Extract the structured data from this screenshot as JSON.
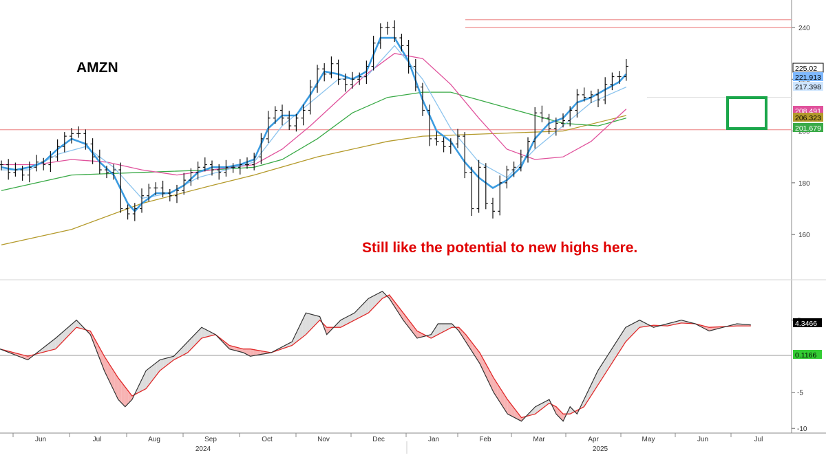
{
  "ticker": "AMZN",
  "annotation": "Still like the potential to new highs here.",
  "colors": {
    "price_bars": "#111111",
    "ema_fast": "#3b9be0",
    "ema_slow": "#8cc4ee",
    "ma_pink": "#e0529c",
    "ma_green": "#3aaa47",
    "ma_olive": "#b49a2b",
    "resistance": "#f0a0a0",
    "macd_line": "#333333",
    "signal_line": "#e02a2a",
    "fill_up": "#dddddd",
    "fill_down": "#f7b3b3",
    "box": "#1aa64a",
    "annotation_text": "#e00000",
    "zero_label_bg": "#33cc33"
  },
  "chart_data": [
    {
      "type": "line",
      "title": "AMZN",
      "ylim": [
        147,
        252
      ],
      "y_ticks": [
        160,
        180,
        200,
        220,
        240
      ],
      "x_ticks": [
        "Jun",
        "Jul",
        "Aug",
        "Sep",
        "Oct",
        "Nov",
        "Dec",
        "Jan",
        "Feb",
        "Mar",
        "Apr",
        "May",
        "Jun",
        "Jul"
      ],
      "year_labels": [
        "2024",
        "2025"
      ],
      "price": [
        [
          0,
          187
        ],
        [
          2,
          184
        ],
        [
          4,
          185
        ],
        [
          6,
          183
        ],
        [
          8,
          186
        ],
        [
          10,
          188
        ],
        [
          12,
          187
        ],
        [
          14,
          190
        ],
        [
          16,
          194
        ],
        [
          18,
          198
        ],
        [
          20,
          199
        ],
        [
          22,
          199
        ],
        [
          24,
          195
        ],
        [
          26,
          190
        ],
        [
          28,
          185
        ],
        [
          30,
          184
        ],
        [
          32,
          185
        ],
        [
          34,
          170
        ],
        [
          36,
          168
        ],
        [
          38,
          170
        ],
        [
          40,
          175
        ],
        [
          42,
          178
        ],
        [
          44,
          178
        ],
        [
          46,
          176
        ],
        [
          48,
          175
        ],
        [
          50,
          177
        ],
        [
          52,
          181
        ],
        [
          54,
          184
        ],
        [
          56,
          186
        ],
        [
          58,
          187
        ],
        [
          60,
          185
        ],
        [
          62,
          184
        ],
        [
          64,
          186
        ],
        [
          66,
          186
        ],
        [
          68,
          187
        ],
        [
          70,
          187
        ],
        [
          72,
          190
        ],
        [
          74,
          197
        ],
        [
          76,
          205
        ],
        [
          78,
          208
        ],
        [
          80,
          205
        ],
        [
          82,
          202
        ],
        [
          84,
          205
        ],
        [
          86,
          208
        ],
        [
          88,
          217
        ],
        [
          90,
          224
        ],
        [
          92,
          222
        ],
        [
          94,
          226
        ],
        [
          96,
          220
        ],
        [
          98,
          218
        ],
        [
          100,
          220
        ],
        [
          102,
          221
        ],
        [
          104,
          225
        ],
        [
          106,
          234
        ],
        [
          108,
          240
        ],
        [
          110,
          240
        ],
        [
          112,
          236
        ],
        [
          114,
          233
        ],
        [
          116,
          225
        ],
        [
          118,
          217
        ],
        [
          120,
          208
        ],
        [
          122,
          197
        ],
        [
          124,
          196
        ],
        [
          126,
          194
        ],
        [
          128,
          195
        ],
        [
          130,
          198
        ],
        [
          132,
          184
        ],
        [
          134,
          170
        ],
        [
          136,
          186
        ],
        [
          138,
          172
        ],
        [
          140,
          169
        ],
        [
          142,
          180
        ],
        [
          144,
          185
        ],
        [
          146,
          186
        ],
        [
          148,
          190
        ],
        [
          150,
          196
        ],
        [
          152,
          207
        ],
        [
          154,
          205
        ],
        [
          156,
          201
        ],
        [
          158,
          203
        ],
        [
          160,
          204
        ],
        [
          162,
          208
        ],
        [
          164,
          214
        ],
        [
          166,
          213
        ],
        [
          168,
          214
        ],
        [
          170,
          212
        ],
        [
          172,
          218
        ],
        [
          174,
          221
        ],
        [
          176,
          221
        ],
        [
          178,
          225
        ]
      ],
      "ema_fast": [
        [
          0,
          186
        ],
        [
          4,
          185
        ],
        [
          8,
          186
        ],
        [
          12,
          188
        ],
        [
          16,
          193
        ],
        [
          20,
          197
        ],
        [
          24,
          195
        ],
        [
          28,
          188
        ],
        [
          32,
          183
        ],
        [
          36,
          172
        ],
        [
          38,
          169
        ],
        [
          40,
          172
        ],
        [
          44,
          176
        ],
        [
          48,
          176
        ],
        [
          52,
          179
        ],
        [
          56,
          184
        ],
        [
          60,
          186
        ],
        [
          64,
          186
        ],
        [
          68,
          187
        ],
        [
          72,
          189
        ],
        [
          76,
          201
        ],
        [
          80,
          206
        ],
        [
          84,
          206
        ],
        [
          88,
          214
        ],
        [
          92,
          223
        ],
        [
          96,
          222
        ],
        [
          100,
          220
        ],
        [
          104,
          223
        ],
        [
          108,
          236
        ],
        [
          112,
          236
        ],
        [
          116,
          227
        ],
        [
          120,
          212
        ],
        [
          124,
          200
        ],
        [
          128,
          196
        ],
        [
          132,
          188
        ],
        [
          136,
          182
        ],
        [
          140,
          178
        ],
        [
          144,
          181
        ],
        [
          148,
          186
        ],
        [
          152,
          197
        ],
        [
          156,
          203
        ],
        [
          160,
          205
        ],
        [
          164,
          211
        ],
        [
          168,
          213
        ],
        [
          172,
          216
        ],
        [
          176,
          219
        ],
        [
          178,
          222
        ]
      ],
      "ema_slow": [
        [
          0,
          185
        ],
        [
          8,
          185
        ],
        [
          16,
          191
        ],
        [
          24,
          194
        ],
        [
          32,
          186
        ],
        [
          40,
          174
        ],
        [
          48,
          176
        ],
        [
          56,
          182
        ],
        [
          64,
          185
        ],
        [
          72,
          188
        ],
        [
          80,
          202
        ],
        [
          88,
          211
        ],
        [
          96,
          220
        ],
        [
          104,
          221
        ],
        [
          112,
          233
        ],
        [
          120,
          220
        ],
        [
          128,
          201
        ],
        [
          136,
          188
        ],
        [
          144,
          182
        ],
        [
          152,
          193
        ],
        [
          160,
          202
        ],
        [
          168,
          211
        ],
        [
          178,
          217
        ]
      ],
      "ma_pink": [
        [
          0,
          187
        ],
        [
          10,
          187
        ],
        [
          20,
          189
        ],
        [
          30,
          188
        ],
        [
          40,
          185
        ],
        [
          50,
          183
        ],
        [
          60,
          185
        ],
        [
          72,
          187
        ],
        [
          80,
          193
        ],
        [
          88,
          202
        ],
        [
          96,
          212
        ],
        [
          104,
          222
        ],
        [
          112,
          230
        ],
        [
          120,
          228
        ],
        [
          128,
          218
        ],
        [
          136,
          205
        ],
        [
          144,
          193
        ],
        [
          152,
          189
        ],
        [
          160,
          190
        ],
        [
          168,
          196
        ],
        [
          178,
          208.5
        ]
      ],
      "ma_green": [
        [
          0,
          177
        ],
        [
          20,
          183
        ],
        [
          40,
          184
        ],
        [
          60,
          185
        ],
        [
          72,
          186
        ],
        [
          80,
          189
        ],
        [
          90,
          197
        ],
        [
          100,
          207
        ],
        [
          110,
          213
        ],
        [
          120,
          215
        ],
        [
          128,
          215
        ],
        [
          136,
          212
        ],
        [
          144,
          209
        ],
        [
          152,
          206
        ],
        [
          160,
          203
        ],
        [
          170,
          202
        ],
        [
          178,
          205
        ]
      ],
      "ma_olive": [
        [
          0,
          156
        ],
        [
          20,
          162
        ],
        [
          40,
          172
        ],
        [
          60,
          179
        ],
        [
          72,
          183
        ],
        [
          90,
          190
        ],
        [
          110,
          196
        ],
        [
          120,
          198
        ],
        [
          140,
          199
        ],
        [
          160,
          200
        ],
        [
          178,
          206
        ]
      ],
      "resistance_levels": [
        243,
        240,
        200.5
      ],
      "last_values": [
        "225.02",
        "221.913",
        "217.398",
        "208.491",
        "206.323",
        "201.679"
      ]
    },
    {
      "type": "area",
      "title": "MACD",
      "ylim": [
        -11,
        9
      ],
      "y_ticks": [
        5,
        -5,
        -10
      ],
      "macd": [
        [
          0,
          1
        ],
        [
          8,
          -0.5
        ],
        [
          16,
          2.5
        ],
        [
          22,
          5
        ],
        [
          26,
          3
        ],
        [
          30,
          -2
        ],
        [
          34,
          -6
        ],
        [
          36,
          -7
        ],
        [
          38,
          -6
        ],
        [
          42,
          -2
        ],
        [
          46,
          -0.5
        ],
        [
          50,
          0
        ],
        [
          54,
          2
        ],
        [
          58,
          4
        ],
        [
          62,
          3
        ],
        [
          66,
          1
        ],
        [
          70,
          0.5
        ],
        [
          72,
          0
        ],
        [
          78,
          0.5
        ],
        [
          84,
          2
        ],
        [
          88,
          6
        ],
        [
          92,
          5.5
        ],
        [
          94,
          3
        ],
        [
          98,
          5
        ],
        [
          102,
          6
        ],
        [
          106,
          8
        ],
        [
          110,
          9
        ],
        [
          112,
          8
        ],
        [
          116,
          5
        ],
        [
          120,
          2.5
        ],
        [
          124,
          3
        ],
        [
          126,
          4.5
        ],
        [
          130,
          4.5
        ],
        [
          132,
          3.5
        ],
        [
          134,
          2
        ],
        [
          138,
          -1
        ],
        [
          142,
          -5
        ],
        [
          146,
          -8
        ],
        [
          150,
          -9
        ],
        [
          154,
          -7
        ],
        [
          158,
          -6
        ],
        [
          160,
          -8
        ],
        [
          162,
          -9
        ],
        [
          164,
          -7
        ],
        [
          166,
          -8
        ],
        [
          168,
          -6
        ],
        [
          172,
          -2
        ],
        [
          176,
          1
        ],
        [
          180,
          4
        ],
        [
          184,
          5
        ],
        [
          188,
          4
        ],
        [
          192,
          4.5
        ],
        [
          196,
          5
        ],
        [
          200,
          4.5
        ],
        [
          204,
          3.5
        ],
        [
          208,
          4
        ],
        [
          212,
          4.5
        ],
        [
          216,
          4.3466
        ]
      ],
      "signal": [
        [
          0,
          1
        ],
        [
          8,
          0
        ],
        [
          16,
          1
        ],
        [
          22,
          4
        ],
        [
          26,
          3.5
        ],
        [
          30,
          0
        ],
        [
          34,
          -3
        ],
        [
          38,
          -5.5
        ],
        [
          42,
          -4.5
        ],
        [
          46,
          -2
        ],
        [
          50,
          -0.5
        ],
        [
          54,
          0.5
        ],
        [
          58,
          2.5
        ],
        [
          62,
          3
        ],
        [
          66,
          1.5
        ],
        [
          70,
          1
        ],
        [
          72,
          1
        ],
        [
          78,
          0.5
        ],
        [
          84,
          1.5
        ],
        [
          88,
          3
        ],
        [
          92,
          5
        ],
        [
          94,
          4
        ],
        [
          98,
          4
        ],
        [
          102,
          5
        ],
        [
          106,
          6
        ],
        [
          110,
          8
        ],
        [
          112,
          8.5
        ],
        [
          116,
          6
        ],
        [
          120,
          3.5
        ],
        [
          124,
          2.5
        ],
        [
          126,
          3
        ],
        [
          130,
          4
        ],
        [
          132,
          4
        ],
        [
          134,
          3
        ],
        [
          138,
          0.5
        ],
        [
          142,
          -3
        ],
        [
          146,
          -6
        ],
        [
          150,
          -8.5
        ],
        [
          154,
          -8
        ],
        [
          158,
          -6.5
        ],
        [
          160,
          -7
        ],
        [
          162,
          -8
        ],
        [
          164,
          -8
        ],
        [
          166,
          -7.5
        ],
        [
          168,
          -7
        ],
        [
          172,
          -4
        ],
        [
          176,
          -1
        ],
        [
          180,
          2
        ],
        [
          184,
          4
        ],
        [
          188,
          4.3
        ],
        [
          192,
          4.2
        ],
        [
          196,
          4.6
        ],
        [
          200,
          4.5
        ],
        [
          204,
          4
        ],
        [
          208,
          4.1
        ],
        [
          212,
          4.2
        ],
        [
          216,
          4.2
        ]
      ],
      "last_values": [
        "4.3466",
        "0.1166"
      ]
    }
  ]
}
